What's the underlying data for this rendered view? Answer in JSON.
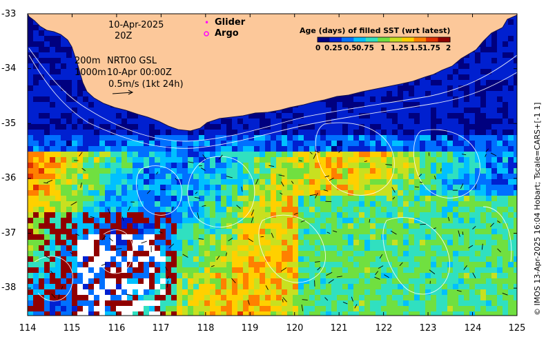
{
  "map": {
    "annotations": {
      "date": "10-Apr-2025",
      "time": "20Z",
      "depth_200": "200m",
      "depth_1000": "1000m",
      "source": "NRT00 GSL",
      "current_time": "10-Apr 00:00Z",
      "vector_scale": "0.5m/s (1kt 24h)"
    },
    "legend": {
      "glider_label": "Glider",
      "argo_label": "Argo",
      "glider_color": "#ff00ff",
      "argo_color": "#ff00ff"
    },
    "colorbar": {
      "title": "Age (days) of filled SST (wrt latest)",
      "ticks": [
        "0",
        "0.25",
        "0.5",
        "0.75",
        "1",
        "1.25",
        "1.5",
        "1.75",
        "2"
      ],
      "colors": [
        "#00007f",
        "#0020d0",
        "#0070ff",
        "#00c0ff",
        "#30e0c0",
        "#70e040",
        "#c8e020",
        "#ffd000",
        "#ff8000",
        "#e03000",
        "#900000"
      ]
    },
    "credit": "© IMOS 13-Apr-2025 16:04 Hobart; Tscale=CARS+[-1 1]",
    "axes": {
      "x_ticks": [
        "114",
        "115",
        "116",
        "117",
        "118",
        "119",
        "120",
        "121",
        "122",
        "123",
        "124",
        "125"
      ],
      "y_ticks": [
        "-33",
        "-34",
        "-35",
        "-36",
        "-37",
        "-38"
      ],
      "xlim": [
        114,
        125
      ],
      "ylim": [
        -38.5,
        -33
      ]
    },
    "colors": {
      "land": "#fcc89a",
      "ocean_deep": "#00158a",
      "contour": "#ffffff"
    }
  }
}
